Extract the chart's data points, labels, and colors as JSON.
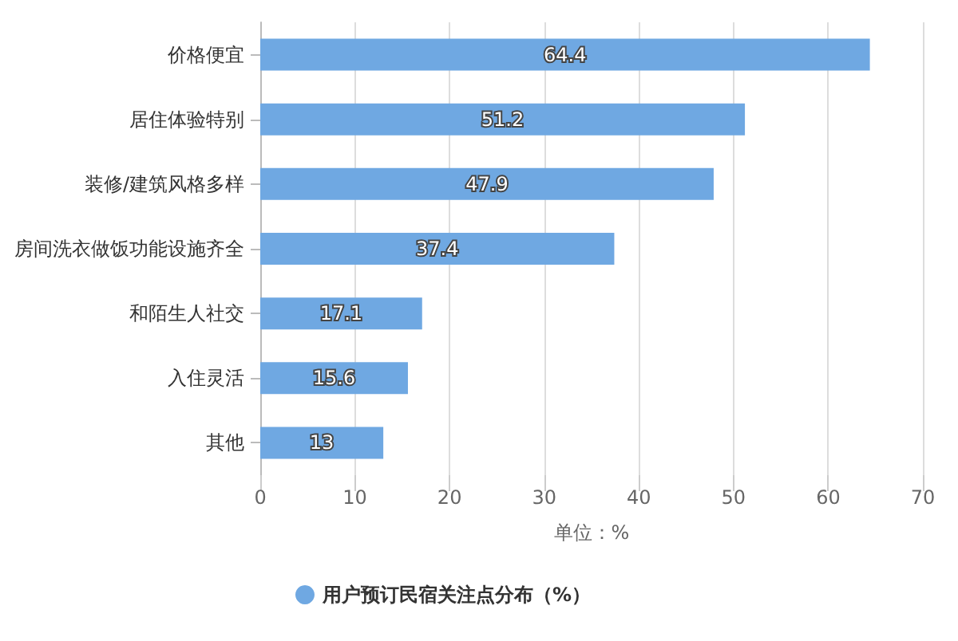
{
  "chart_data": {
    "type": "bar",
    "orientation": "horizontal",
    "xlabel": "单位：%",
    "categories": [
      "价格便宜",
      "居住体验特别",
      "装修/建筑风格多样",
      "房间洗衣做饭功能设施齐全",
      "和陌生人社交",
      "入住灵活",
      "其他"
    ],
    "series": [
      {
        "name": "用户预订民宿关注点分布（%）",
        "color": "#6fa8e2",
        "values": [
          64.4,
          51.2,
          47.9,
          37.4,
          17.1,
          15.6,
          13
        ]
      }
    ],
    "xlim": [
      0,
      70
    ],
    "xticks": [
      0,
      10,
      20,
      30,
      40,
      50,
      60,
      70
    ],
    "grid": "x",
    "legend": "bottom",
    "data_labels": true
  }
}
